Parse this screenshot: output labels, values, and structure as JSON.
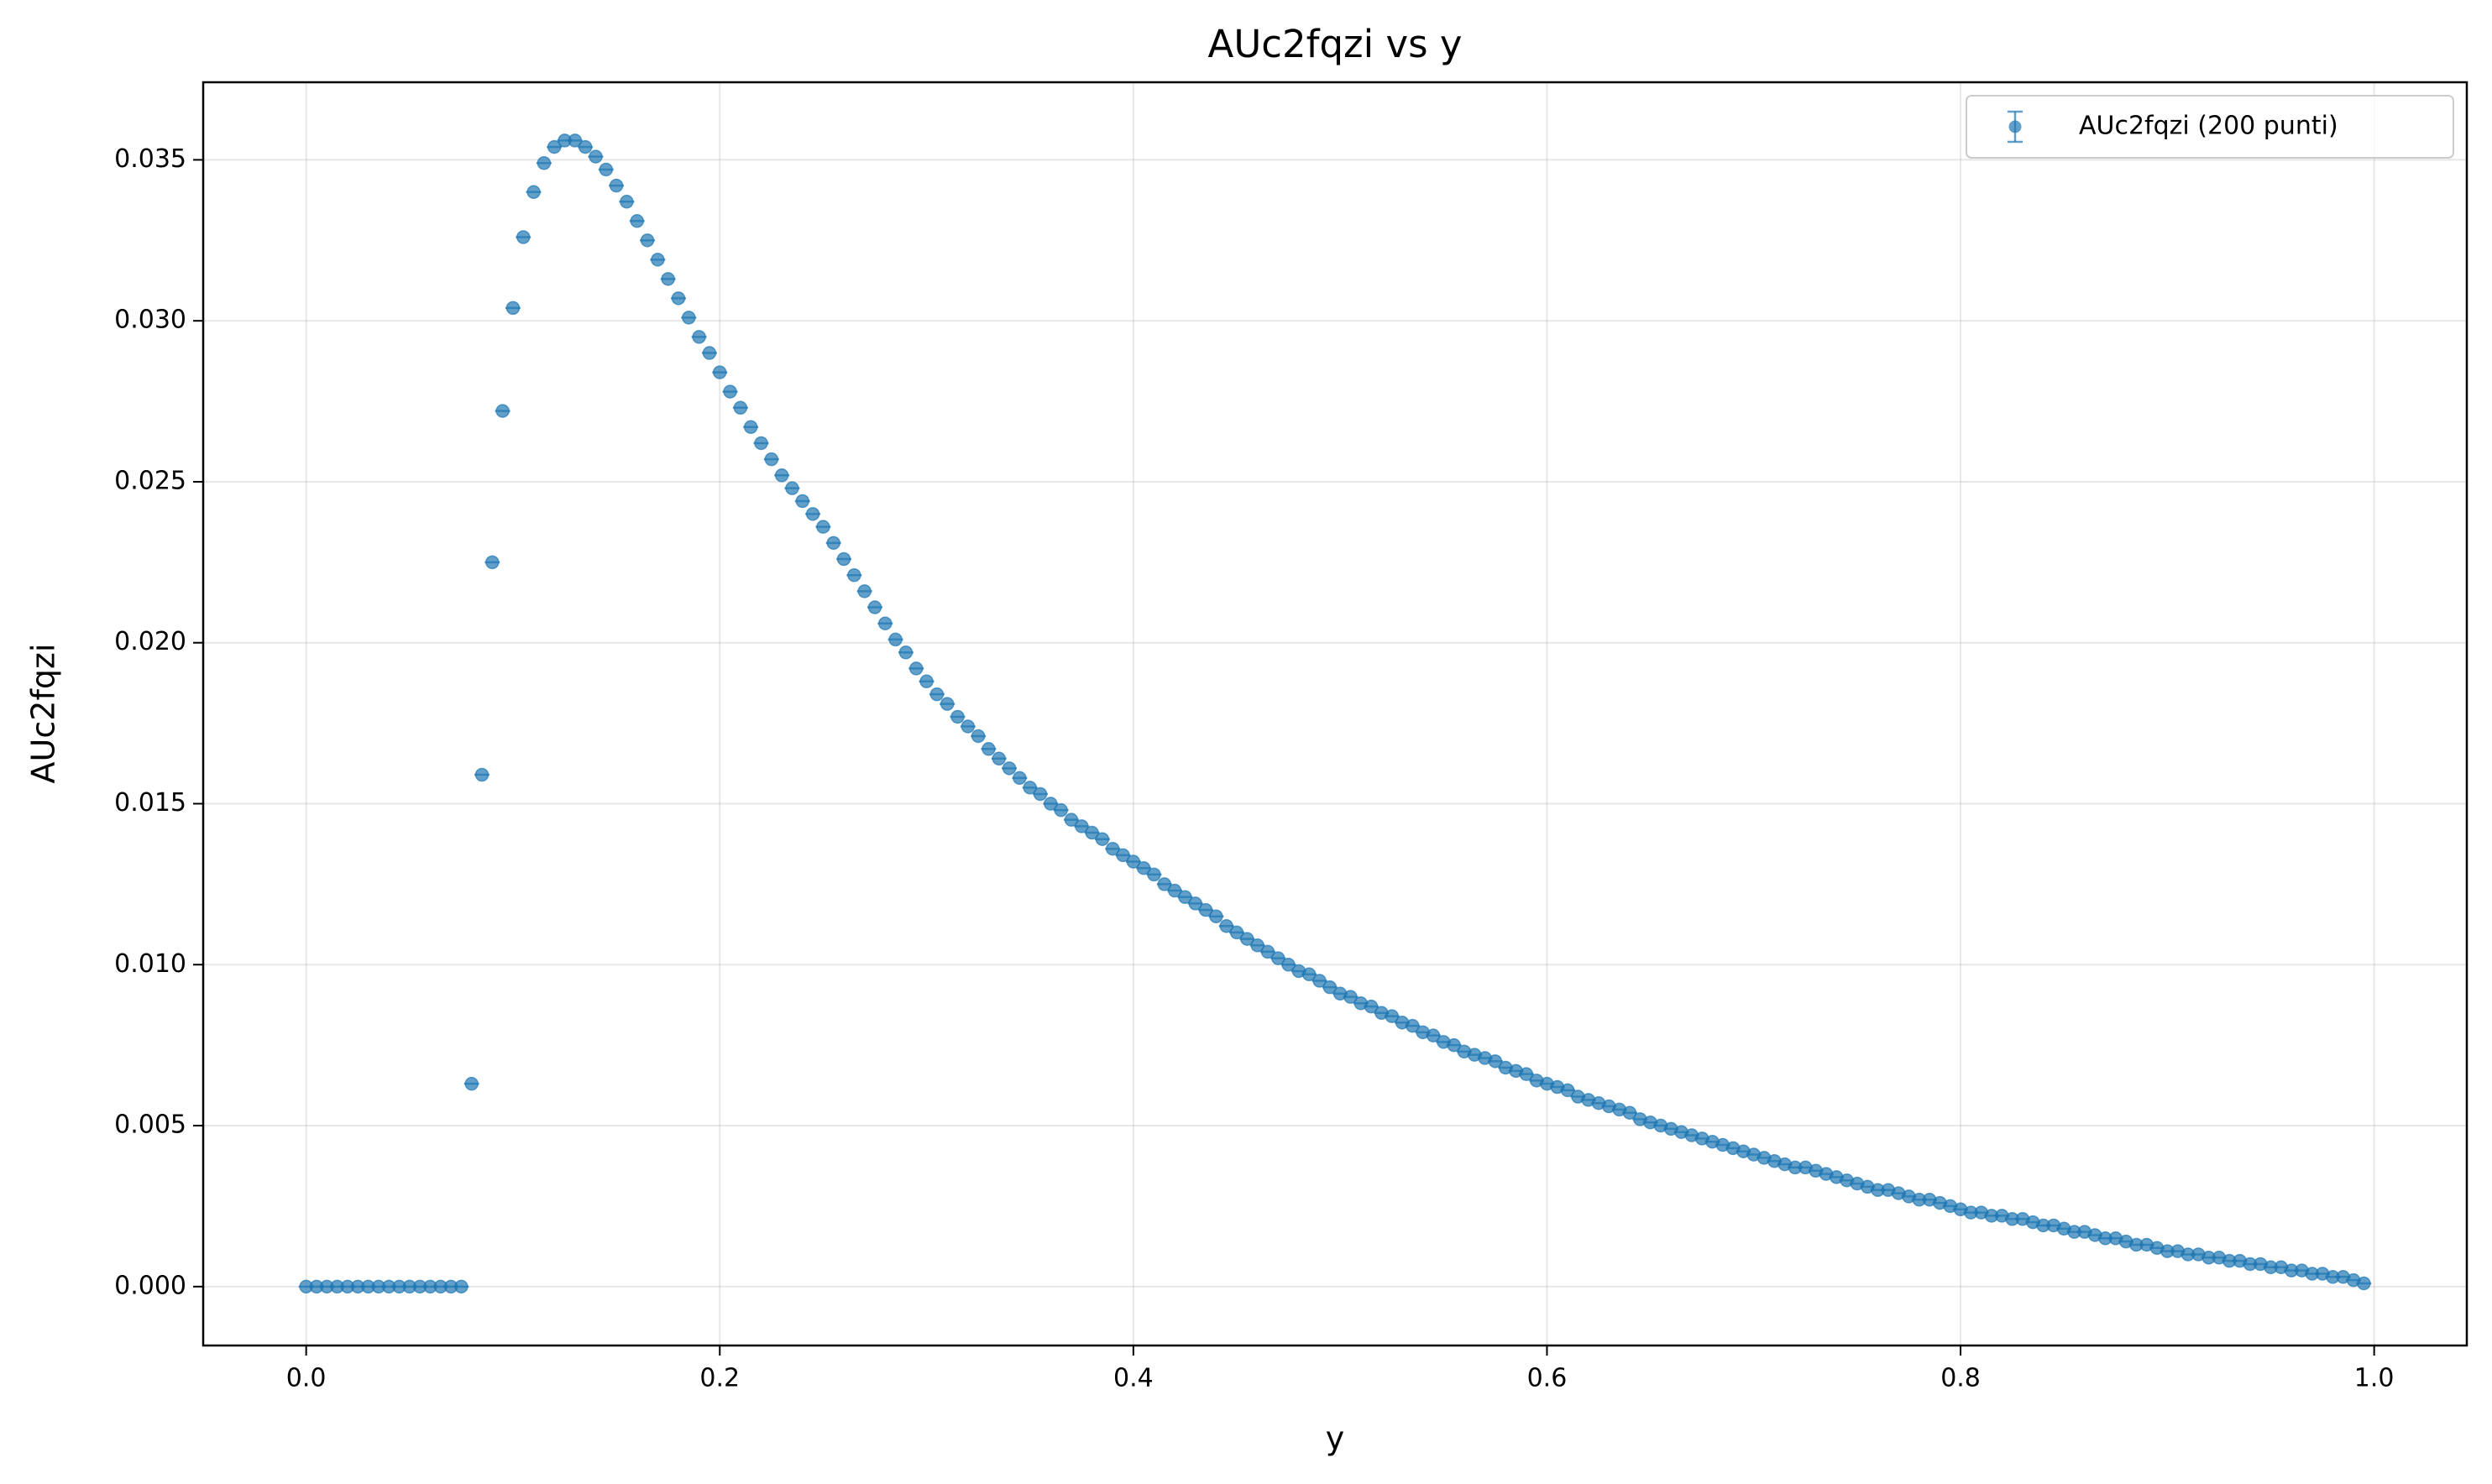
{
  "chart_data": {
    "type": "scatter",
    "title": "AUc2fqzi vs y",
    "x_label": "y",
    "y_label": "AUc2fqzi",
    "grid": true,
    "legend": "upper right",
    "xlim": [
      -0.0498,
      1.0448
    ],
    "ylim": [
      -0.00183,
      0.03741
    ],
    "xticks": [
      {
        "value": 0,
        "label": "0.0"
      },
      0.2,
      0.4,
      0.6,
      0.8,
      {
        "value": 1,
        "label": "1.0"
      }
    ],
    "yticks": [
      {
        "value": 0,
        "label": "0.000"
      },
      0.005,
      {
        "value": 0.01,
        "label": "0.010"
      },
      0.015,
      {
        "value": 0.02,
        "label": "0.020"
      },
      0.025,
      {
        "value": 0.03,
        "label": "0.030"
      },
      0.035
    ],
    "series": [
      {
        "name": "AUc2fqzi (200 punti)",
        "color": "#1f77b4",
        "x": [
          0,
          0.005,
          0.01,
          0.015,
          0.02,
          0.025,
          0.03,
          0.035,
          0.04,
          0.045,
          0.05,
          0.055,
          0.06,
          0.065,
          0.07,
          0.075,
          0.08,
          0.085,
          0.09,
          0.095,
          0.1,
          0.105,
          0.11,
          0.115,
          0.12,
          0.125,
          0.13,
          0.135,
          0.14,
          0.145,
          0.15,
          0.155,
          0.16,
          0.165,
          0.17,
          0.175,
          0.18,
          0.185,
          0.19,
          0.195,
          0.2,
          0.205,
          0.21,
          0.215,
          0.22,
          0.225,
          0.23,
          0.235,
          0.24,
          0.245,
          0.25,
          0.255,
          0.26,
          0.265,
          0.27,
          0.275,
          0.28,
          0.285,
          0.29,
          0.295,
          0.3,
          0.305,
          0.31,
          0.315,
          0.32,
          0.325,
          0.33,
          0.335,
          0.34,
          0.345,
          0.35,
          0.355,
          0.36,
          0.365,
          0.37,
          0.375,
          0.38,
          0.385,
          0.39,
          0.395,
          0.4,
          0.405,
          0.41,
          0.415,
          0.42,
          0.425,
          0.43,
          0.435,
          0.44,
          0.445,
          0.45,
          0.455,
          0.46,
          0.465,
          0.47,
          0.475,
          0.48,
          0.485,
          0.49,
          0.495,
          0.5,
          0.505,
          0.51,
          0.515,
          0.52,
          0.525,
          0.53,
          0.535,
          0.54,
          0.545,
          0.55,
          0.555,
          0.56,
          0.565,
          0.57,
          0.575,
          0.58,
          0.585,
          0.59,
          0.595,
          0.6,
          0.605,
          0.61,
          0.615,
          0.62,
          0.625,
          0.63,
          0.635,
          0.64,
          0.645,
          0.65,
          0.655,
          0.66,
          0.665,
          0.67,
          0.675,
          0.68,
          0.685,
          0.69,
          0.695,
          0.7,
          0.705,
          0.71,
          0.715,
          0.72,
          0.725,
          0.73,
          0.735,
          0.74,
          0.745,
          0.75,
          0.755,
          0.76,
          0.765,
          0.77,
          0.775,
          0.78,
          0.785,
          0.79,
          0.795,
          0.8,
          0.805,
          0.81,
          0.815,
          0.82,
          0.825,
          0.83,
          0.835,
          0.84,
          0.845,
          0.85,
          0.855,
          0.86,
          0.865,
          0.87,
          0.875,
          0.88,
          0.885,
          0.89,
          0.895,
          0.9,
          0.905,
          0.91,
          0.915,
          0.92,
          0.925,
          0.93,
          0.935,
          0.94,
          0.945,
          0.95,
          0.955,
          0.96,
          0.965,
          0.97,
          0.975,
          0.98,
          0.985,
          0.99,
          0.995
        ],
        "values": [
          0,
          0,
          0,
          0,
          0,
          0,
          0,
          0,
          0,
          0,
          0,
          0,
          0,
          0,
          0,
          0,
          0.0063,
          0.0159,
          0.0225,
          0.0272,
          0.0304,
          0.0326,
          0.034,
          0.0349,
          0.0354,
          0.0356,
          0.0356,
          0.0354,
          0.0351,
          0.0347,
          0.0342,
          0.0337,
          0.0331,
          0.0325,
          0.0319,
          0.0313,
          0.0307,
          0.0301,
          0.0295,
          0.029,
          0.0284,
          0.0278,
          0.0273,
          0.0267,
          0.0262,
          0.0257,
          0.0252,
          0.0248,
          0.0244,
          0.024,
          0.0236,
          0.0231,
          0.0226,
          0.0221,
          0.0216,
          0.0211,
          0.0206,
          0.0201,
          0.0197,
          0.0192,
          0.0188,
          0.0184,
          0.0181,
          0.0177,
          0.0174,
          0.0171,
          0.0167,
          0.0164,
          0.0161,
          0.0158,
          0.0155,
          0.0153,
          0.015,
          0.0148,
          0.0145,
          0.0143,
          0.0141,
          0.0139,
          0.0136,
          0.0134,
          0.0132,
          0.013,
          0.0128,
          0.0125,
          0.0123,
          0.0121,
          0.0119,
          0.0117,
          0.0115,
          0.0112,
          0.011,
          0.0108,
          0.0106,
          0.0104,
          0.0102,
          0.01,
          0.0098,
          0.0097,
          0.0095,
          0.0093,
          0.0091,
          0.009,
          0.0088,
          0.0087,
          0.0085,
          0.0084,
          0.0082,
          0.0081,
          0.0079,
          0.0078,
          0.0076,
          0.0075,
          0.0073,
          0.0072,
          0.0071,
          0.007,
          0.0068,
          0.0067,
          0.0066,
          0.0064,
          0.0063,
          0.0062,
          0.0061,
          0.0059,
          0.0058,
          0.0057,
          0.0056,
          0.0055,
          0.0054,
          0.0052,
          0.0051,
          0.005,
          0.0049,
          0.0048,
          0.0047,
          0.0046,
          0.0045,
          0.0044,
          0.0043,
          0.0042,
          0.0041,
          0.004,
          0.0039,
          0.0038,
          0.0037,
          0.0037,
          0.0036,
          0.0035,
          0.0034,
          0.0033,
          0.0032,
          0.0031,
          0.003,
          0.003,
          0.0029,
          0.0028,
          0.0027,
          0.0027,
          0.0026,
          0.0025,
          0.0024,
          0.0023,
          0.0023,
          0.0022,
          0.0022,
          0.0021,
          0.0021,
          0.002,
          0.0019,
          0.0019,
          0.0018,
          0.0017,
          0.0017,
          0.0016,
          0.0015,
          0.0015,
          0.0014,
          0.0013,
          0.0013,
          0.0012,
          0.0011,
          0.0011,
          0.001,
          0.001,
          0.0009,
          0.0009,
          0.0008,
          0.0008,
          0.0007,
          0.0007,
          0.0006,
          0.0006,
          0.0005,
          0.0005,
          0.0004,
          0.0004,
          0.0003,
          0.0003,
          0.0002,
          0.0001
        ]
      }
    ]
  }
}
